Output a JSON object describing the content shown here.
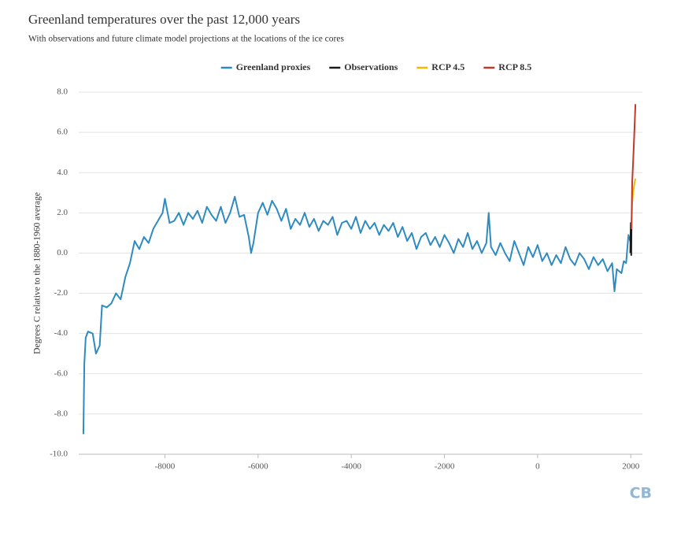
{
  "chart_data": {
    "type": "line",
    "title": "Greenland temperatures over the past 12,000 years",
    "subtitle": "With observations and future climate model projections at the locations of the ice cores",
    "y_label": "Degrees C relative to the 1880-1960 average",
    "logo": "CB",
    "xlim": [
      -9850,
      2250
    ],
    "ylim": [
      -10,
      8
    ],
    "xticks": [
      -8000,
      -6000,
      -4000,
      -2000,
      0,
      2000
    ],
    "yticks": [
      {
        "value": 8,
        "label": "8.0"
      },
      {
        "value": 6,
        "label": "6.0"
      },
      {
        "value": 4,
        "label": "4.0"
      },
      {
        "value": 2,
        "label": "2.0"
      },
      {
        "value": 0,
        "label": "0.0"
      },
      {
        "value": -2,
        "label": "-2.0"
      },
      {
        "value": -4,
        "label": "-4.0"
      },
      {
        "value": -6,
        "label": "-6.0"
      },
      {
        "value": -8,
        "label": "-8.0"
      },
      {
        "value": -10,
        "label": "-10.0"
      }
    ],
    "grid": true,
    "legend": "top",
    "series": [
      {
        "name": "Greenland proxies",
        "color": "#2e8bc0",
        "x": [
          -9750,
          -9730,
          -9700,
          -9650,
          -9550,
          -9480,
          -9400,
          -9350,
          -9250,
          -9150,
          -9050,
          -8950,
          -8850,
          -8750,
          -8650,
          -8550,
          -8450,
          -8350,
          -8250,
          -8150,
          -8050,
          -8000,
          -7900,
          -7800,
          -7700,
          -7600,
          -7500,
          -7400,
          -7300,
          -7200,
          -7100,
          -7000,
          -6900,
          -6800,
          -6700,
          -6600,
          -6500,
          -6400,
          -6300,
          -6200,
          -6150,
          -6100,
          -6000,
          -5900,
          -5800,
          -5700,
          -5600,
          -5500,
          -5400,
          -5300,
          -5200,
          -5100,
          -5000,
          -4900,
          -4800,
          -4700,
          -4600,
          -4500,
          -4400,
          -4300,
          -4200,
          -4100,
          -4000,
          -3900,
          -3800,
          -3700,
          -3600,
          -3500,
          -3400,
          -3300,
          -3200,
          -3100,
          -3000,
          -2900,
          -2800,
          -2700,
          -2600,
          -2500,
          -2400,
          -2300,
          -2200,
          -2100,
          -2000,
          -1900,
          -1800,
          -1700,
          -1600,
          -1500,
          -1400,
          -1300,
          -1200,
          -1100,
          -1050,
          -1000,
          -900,
          -800,
          -700,
          -600,
          -500,
          -400,
          -300,
          -200,
          -100,
          0,
          100,
          200,
          300,
          400,
          500,
          600,
          700,
          800,
          900,
          1000,
          1100,
          1200,
          1300,
          1400,
          1500,
          1600,
          1650,
          1700,
          1800,
          1850,
          1900,
          1950,
          2000
        ],
        "values": [
          -9.0,
          -5.5,
          -4.2,
          -3.9,
          -4.0,
          -5.0,
          -4.6,
          -2.6,
          -2.7,
          -2.5,
          -2.0,
          -2.3,
          -1.2,
          -0.5,
          0.6,
          0.2,
          0.8,
          0.5,
          1.2,
          1.6,
          2.0,
          2.7,
          1.5,
          1.6,
          2.0,
          1.4,
          2.0,
          1.7,
          2.1,
          1.5,
          2.3,
          1.9,
          1.6,
          2.3,
          1.5,
          2.0,
          2.8,
          1.8,
          1.9,
          0.8,
          0.0,
          0.5,
          2.0,
          2.5,
          1.9,
          2.6,
          2.2,
          1.6,
          2.2,
          1.2,
          1.7,
          1.4,
          2.0,
          1.3,
          1.7,
          1.1,
          1.6,
          1.4,
          1.8,
          0.9,
          1.5,
          1.6,
          1.2,
          1.8,
          1.0,
          1.6,
          1.2,
          1.5,
          0.9,
          1.4,
          1.1,
          1.5,
          0.8,
          1.3,
          0.6,
          1.0,
          0.2,
          0.8,
          1.0,
          0.4,
          0.8,
          0.3,
          0.9,
          0.5,
          0.0,
          0.7,
          0.3,
          1.0,
          0.2,
          0.6,
          0.0,
          0.5,
          2.0,
          0.3,
          -0.1,
          0.5,
          0.0,
          -0.4,
          0.6,
          0.0,
          -0.6,
          0.3,
          -0.2,
          0.4,
          -0.4,
          0.0,
          -0.6,
          -0.1,
          -0.5,
          0.3,
          -0.3,
          -0.6,
          0.0,
          -0.3,
          -0.8,
          -0.2,
          -0.6,
          -0.3,
          -0.9,
          -0.5,
          -1.9,
          -0.8,
          -1.0,
          -0.4,
          -0.5,
          0.9,
          0.5
        ]
      },
      {
        "name": "Observations",
        "color": "#1a1a1a",
        "x": [
          1990,
          2000,
          2010,
          2015
        ],
        "values": [
          0.0,
          1.5,
          -0.1,
          1.2
        ]
      },
      {
        "name": "RCP 4.5",
        "color": "#f5b800",
        "x": [
          2015,
          2030,
          2050,
          2080,
          2100
        ],
        "values": [
          1.2,
          2.5,
          3.0,
          3.5,
          3.7
        ]
      },
      {
        "name": "RCP 8.5",
        "color": "#c0392b",
        "x": [
          2015,
          2030,
          2050,
          2080,
          2100
        ],
        "values": [
          1.2,
          3.5,
          4.5,
          6.2,
          7.4
        ]
      }
    ]
  }
}
